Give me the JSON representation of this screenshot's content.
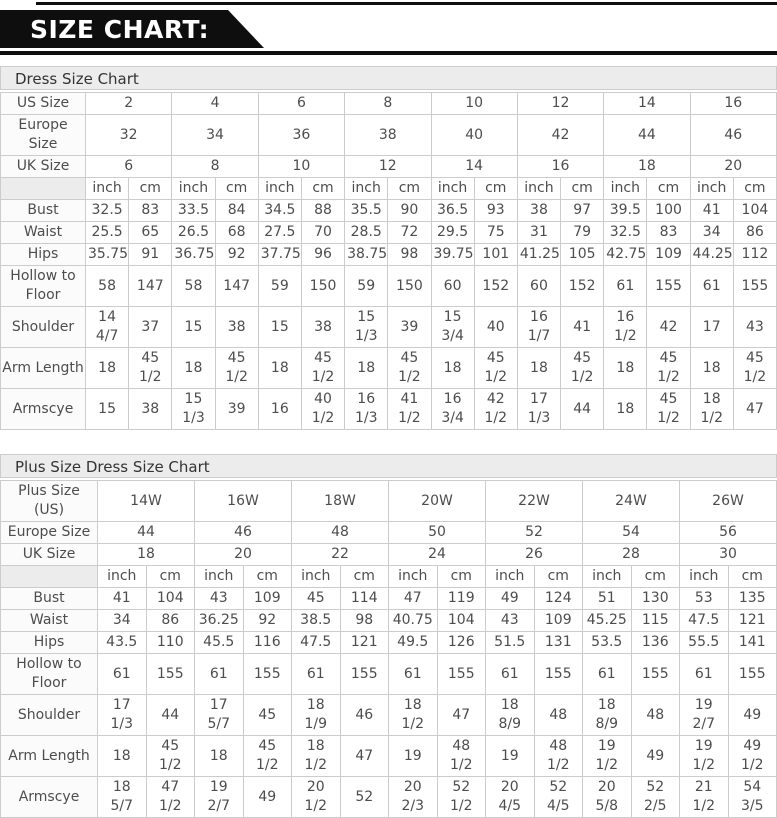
{
  "banner": {
    "title": "SIZE CHART:"
  },
  "colors": {
    "banner_bg": "#0e0e0e",
    "banner_text": "#ffffff",
    "border": "#cccccc",
    "title_row_bg": "#ececec",
    "label_bg": "#fbfbfb",
    "text": "#4d4d4d"
  },
  "tables": [
    {
      "title": "Dress Size Chart",
      "label_col_width": 85,
      "size_rows": [
        {
          "label": "US Size",
          "values": [
            "2",
            "4",
            "6",
            "8",
            "10",
            "12",
            "14",
            "16"
          ]
        },
        {
          "label": "Europe Size",
          "values": [
            "32",
            "34",
            "36",
            "38",
            "40",
            "42",
            "44",
            "46"
          ]
        },
        {
          "label": "UK Size",
          "values": [
            "6",
            "8",
            "10",
            "12",
            "14",
            "16",
            "18",
            "20"
          ]
        }
      ],
      "unit_labels": {
        "inch": "inch",
        "cm": "cm"
      },
      "measure_rows": [
        {
          "label": "Bust",
          "values": [
            "32.5",
            "83",
            "33.5",
            "84",
            "34.5",
            "88",
            "35.5",
            "90",
            "36.5",
            "93",
            "38",
            "97",
            "39.5",
            "100",
            "41",
            "104"
          ]
        },
        {
          "label": "Waist",
          "values": [
            "25.5",
            "65",
            "26.5",
            "68",
            "27.5",
            "70",
            "28.5",
            "72",
            "29.5",
            "75",
            "31",
            "79",
            "32.5",
            "83",
            "34",
            "86"
          ]
        },
        {
          "label": "Hips",
          "values": [
            "35.75",
            "91",
            "36.75",
            "92",
            "37.75",
            "96",
            "38.75",
            "98",
            "39.75",
            "101",
            "41.25",
            "105",
            "42.75",
            "109",
            "44.25",
            "112"
          ]
        },
        {
          "label": "Hollow to Floor",
          "values": [
            "58",
            "147",
            "58",
            "147",
            "59",
            "150",
            "59",
            "150",
            "60",
            "152",
            "60",
            "152",
            "61",
            "155",
            "61",
            "155"
          ]
        },
        {
          "label": "Shoulder",
          "values": [
            "14 4/7",
            "37",
            "15",
            "38",
            "15",
            "38",
            "15 1/3",
            "39",
            "15 3/4",
            "40",
            "16 1/7",
            "41",
            "16 1/2",
            "42",
            "17",
            "43"
          ]
        },
        {
          "label": "Arm Length",
          "values": [
            "18",
            "45 1/2",
            "18",
            "45 1/2",
            "18",
            "45 1/2",
            "18",
            "45 1/2",
            "18",
            "45 1/2",
            "18",
            "45 1/2",
            "18",
            "45 1/2",
            "18",
            "45 1/2"
          ]
        },
        {
          "label": "Armscye",
          "values": [
            "15",
            "38",
            "15 1/3",
            "39",
            "16",
            "40 1/2",
            "16 1/3",
            "41 1/2",
            "16 3/4",
            "42 1/2",
            "17 1/3",
            "44",
            "18",
            "45 1/2",
            "18 1/2",
            "47"
          ]
        }
      ]
    },
    {
      "title": "Plus Size Dress Size Chart",
      "label_col_width": 97,
      "size_rows": [
        {
          "label": "Plus Size (US)",
          "values": [
            "14W",
            "16W",
            "18W",
            "20W",
            "22W",
            "24W",
            "26W"
          ]
        },
        {
          "label": "Europe Size",
          "values": [
            "44",
            "46",
            "48",
            "50",
            "52",
            "54",
            "56"
          ]
        },
        {
          "label": "UK Size",
          "values": [
            "18",
            "20",
            "22",
            "24",
            "26",
            "28",
            "30"
          ]
        }
      ],
      "unit_labels": {
        "inch": "inch",
        "cm": "cm"
      },
      "measure_rows": [
        {
          "label": "Bust",
          "values": [
            "41",
            "104",
            "43",
            "109",
            "45",
            "114",
            "47",
            "119",
            "49",
            "124",
            "51",
            "130",
            "53",
            "135"
          ]
        },
        {
          "label": "Waist",
          "values": [
            "34",
            "86",
            "36.25",
            "92",
            "38.5",
            "98",
            "40.75",
            "104",
            "43",
            "109",
            "45.25",
            "115",
            "47.5",
            "121"
          ]
        },
        {
          "label": "Hips",
          "values": [
            "43.5",
            "110",
            "45.5",
            "116",
            "47.5",
            "121",
            "49.5",
            "126",
            "51.5",
            "131",
            "53.5",
            "136",
            "55.5",
            "141"
          ]
        },
        {
          "label": "Hollow to Floor",
          "values": [
            "61",
            "155",
            "61",
            "155",
            "61",
            "155",
            "61",
            "155",
            "61",
            "155",
            "61",
            "155",
            "61",
            "155"
          ]
        },
        {
          "label": "Shoulder",
          "values": [
            "17 1/3",
            "44",
            "17 5/7",
            "45",
            "18 1/9",
            "46",
            "18 1/2",
            "47",
            "18 8/9",
            "48",
            "18 8/9",
            "48",
            "19 2/7",
            "49"
          ]
        },
        {
          "label": "Arm Length",
          "values": [
            "18",
            "45 1/2",
            "18",
            "45 1/2",
            "18 1/2",
            "47",
            "19",
            "48 1/2",
            "19",
            "48 1/2",
            "19 1/2",
            "49",
            "19 1/2",
            "49 1/2"
          ]
        },
        {
          "label": "Armscye",
          "values": [
            "18 5/7",
            "47 1/2",
            "19 2/7",
            "49",
            "20 1/2",
            "52",
            "20 2/3",
            "52 1/2",
            "20 4/5",
            "52 4/5",
            "20 5/8",
            "52 2/5",
            "21 1/2",
            "54 3/5"
          ]
        }
      ]
    }
  ]
}
